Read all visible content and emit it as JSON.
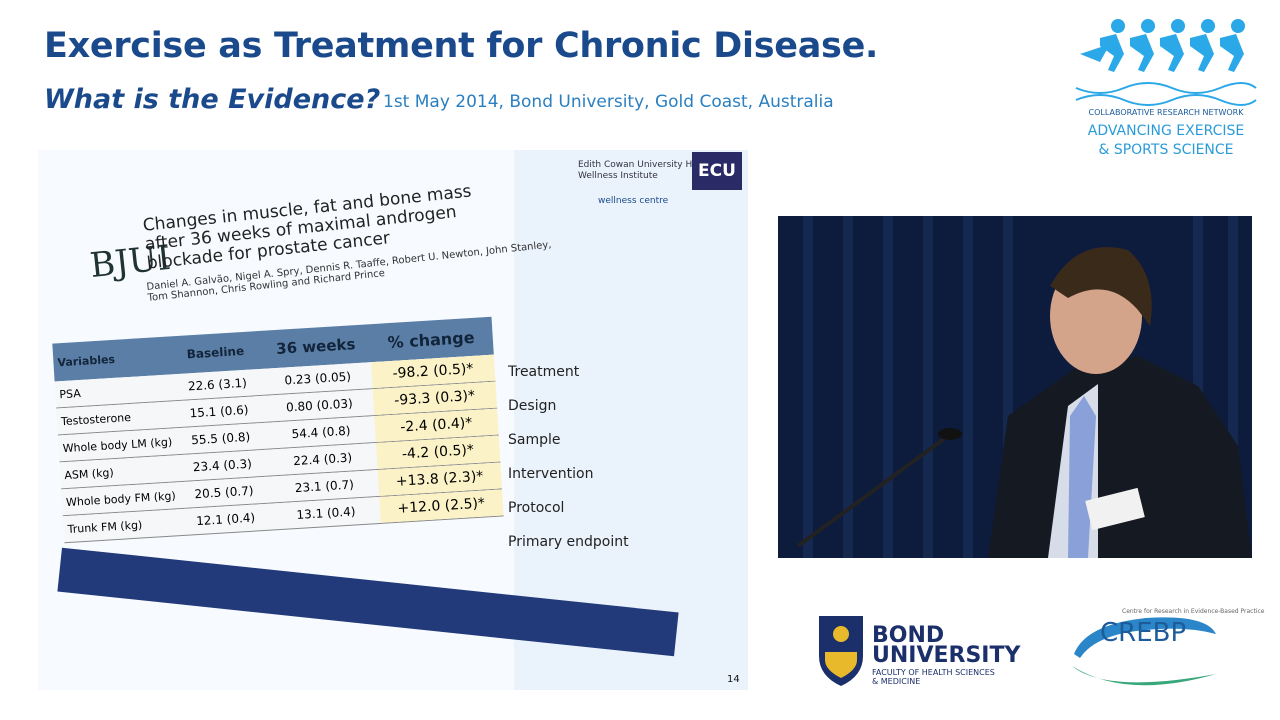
{
  "header": {
    "title": "Exercise as Treatment for Chronic Disease.",
    "subtitle": "What is the Evidence?",
    "event_line": "1st May 2014, Bond University, Gold Coast, Australia"
  },
  "crn_logo": {
    "line1": "COLLABORATIVE RESEARCH NETWORK",
    "line2": "ADVANCING EXERCISE",
    "line3": "& SPORTS SCIENCE",
    "color": "#2a9bd8"
  },
  "slide": {
    "journal": "BJUI",
    "paper_title": "Changes in muscle, fat and bone mass after 36 weeks of maximal androgen blockade for prostate cancer",
    "authors": "Daniel A. Galvão, Nigel A. Spry, Dennis R. Taaffe, Robert U. Newton, John Stanley, Tom Shannon, Chris Rowling and Richard Prince",
    "institute": "Edith Cowan University Health and Wellness Institute",
    "wellness": "wellness centre",
    "ecu": "ECU",
    "table": {
      "headers": [
        "Variables",
        "Baseline",
        "36 weeks",
        "% change"
      ],
      "rows": [
        [
          "PSA",
          "22.6 (3.1)",
          "0.23 (0.05)",
          "-98.2 (0.5)*"
        ],
        [
          "Testosterone",
          "15.1 (0.6)",
          "0.80 (0.03)",
          "-93.3 (0.3)*"
        ],
        [
          "Whole body LM (kg)",
          "55.5 (0.8)",
          "54.4 (0.8)",
          "-2.4 (0.4)*"
        ],
        [
          "ASM (kg)",
          "23.4 (0.3)",
          "22.4 (0.3)",
          "-4.2 (0.5)*"
        ],
        [
          "Whole body FM (kg)",
          "20.5 (0.7)",
          "23.1 (0.7)",
          "+13.8 (2.3)*"
        ],
        [
          "Trunk FM (kg)",
          "12.1 (0.4)",
          "13.1 (0.4)",
          "+12.0 (2.5)*"
        ]
      ]
    },
    "side_labels": [
      "Treatment",
      "Design",
      "Sample",
      "Intervention",
      "Protocol",
      "Primary endpoint"
    ],
    "page_number": "14"
  },
  "bond": {
    "line1": "BOND",
    "line2": "UNIVERSITY",
    "faculty1": "FACULTY OF HEALTH SCIENCES",
    "faculty2": "& MEDICINE"
  },
  "crebp": {
    "name": "CREBP",
    "tagline": "Centre for Research in Evidence-Based Practice"
  }
}
